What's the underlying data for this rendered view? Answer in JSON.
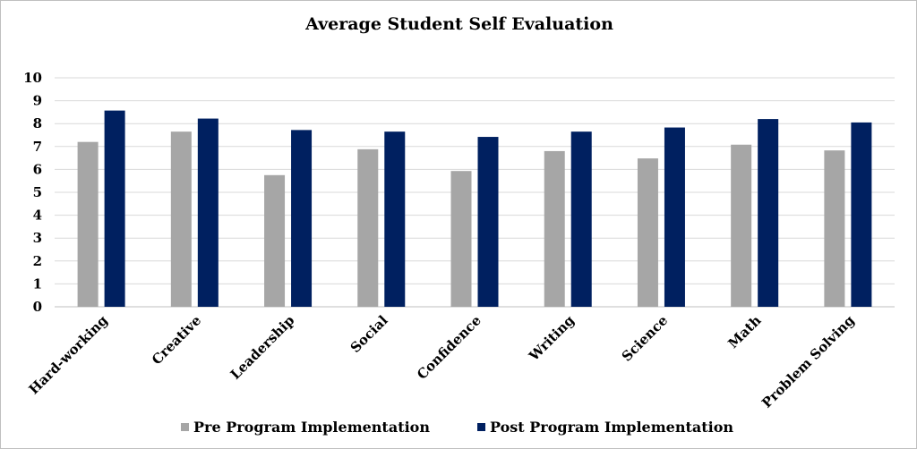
{
  "chart_data": {
    "type": "bar",
    "title": "Average Student Self Evaluation",
    "categories": [
      "Hard-working",
      "Creative",
      "Leadership",
      "Social",
      "Confidence",
      "Writing",
      "Science",
      "Math",
      "Problem Solving"
    ],
    "series": [
      {
        "name": "Pre Program Implementation",
        "color": "#a6a6a6",
        "values": [
          7.2,
          7.65,
          5.75,
          6.88,
          5.93,
          6.8,
          6.48,
          7.08,
          6.83
        ]
      },
      {
        "name": "Post Program Implementation",
        "color": "#002060",
        "values": [
          8.57,
          8.22,
          7.72,
          7.65,
          7.42,
          7.65,
          7.83,
          8.2,
          8.05
        ]
      }
    ],
    "ylim": [
      0,
      10
    ],
    "yticks": [
      0,
      1,
      2,
      3,
      4,
      5,
      6,
      7,
      8,
      9,
      10
    ],
    "grid": true,
    "legend_position": "bottom"
  }
}
